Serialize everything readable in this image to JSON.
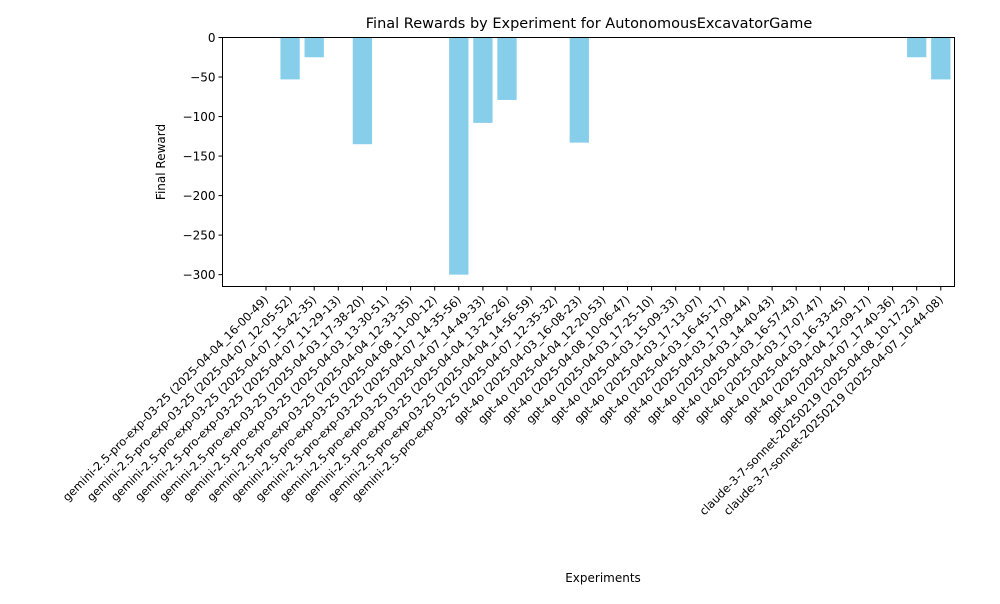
{
  "chart_data": {
    "type": "bar",
    "title": "Final Rewards by Experiment for AutonomousExcavatorGame",
    "xlabel": "Experiments",
    "ylabel": "Final Reward",
    "ylim": [
      -315,
      0
    ],
    "yticks": [
      0,
      -50,
      -100,
      -150,
      -200,
      -250,
      -300
    ],
    "ytick_labels": [
      "0",
      "−50",
      "−100",
      "−150",
      "−200",
      "−250",
      "−300"
    ],
    "grid": false,
    "bar_color": "#87CEEB",
    "categories": [
      "gemini-2.5-pro-exp-03-25 (2025-04-04_16-00-49)",
      "gemini-2.5-pro-exp-03-25 (2025-04-07_12-05-52)",
      "gemini-2.5-pro-exp-03-25 (2025-04-07_15-42-35)",
      "gemini-2.5-pro-exp-03-25 (2025-04-07_11-29-13)",
      "gemini-2.5-pro-exp-03-25 (2025-04-03_17-38-20)",
      "gemini-2.5-pro-exp-03-25 (2025-04-03_13-30-51)",
      "gemini-2.5-pro-exp-03-25 (2025-04-04_12-33-35)",
      "gemini-2.5-pro-exp-03-25 (2025-04-08_11-00-12)",
      "gemini-2.5-pro-exp-03-25 (2025-04-07_14-35-56)",
      "gemini-2.5-pro-exp-03-25 (2025-04-07_14-49-33)",
      "gemini-2.5-pro-exp-03-25 (2025-04-04_13-26-26)",
      "gemini-2.5-pro-exp-03-25 (2025-04-04_14-56-59)",
      "gemini-2.5-pro-exp-03-25 (2025-04-07_12-35-32)",
      "gpt-4o (2025-04-03_16-08-23)",
      "gpt-4o (2025-04-04_12-20-53)",
      "gpt-4o (2025-04-08_10-06-47)",
      "gpt-4o (2025-04-03_17-25-10)",
      "gpt-4o (2025-04-03_15-09-33)",
      "gpt-4o (2025-04-03_17-13-07)",
      "gpt-4o (2025-04-03_16-45-17)",
      "gpt-4o (2025-04-03_17-09-44)",
      "gpt-4o (2025-04-03_14-40-43)",
      "gpt-4o (2025-04-03_16-57-43)",
      "gpt-4o (2025-04-03_17-07-47)",
      "gpt-4o (2025-04-03_16-33-45)",
      "gpt-4o (2025-04-04_12-09-17)",
      "gpt-4o (2025-04-07_17-40-36)",
      "claude-3-7-sonnet-20250219 (2025-04-08_10-17-23)",
      "claude-3-7-sonnet-20250219 (2025-04-07_10-44-08)"
    ],
    "values": [
      0,
      -53,
      -25,
      0,
      -135,
      0,
      0,
      0,
      -300,
      -108,
      -79,
      0,
      0,
      -133,
      0,
      0,
      0,
      0,
      0,
      0,
      0,
      0,
      0,
      0,
      0,
      0,
      0,
      -25,
      -53
    ]
  }
}
